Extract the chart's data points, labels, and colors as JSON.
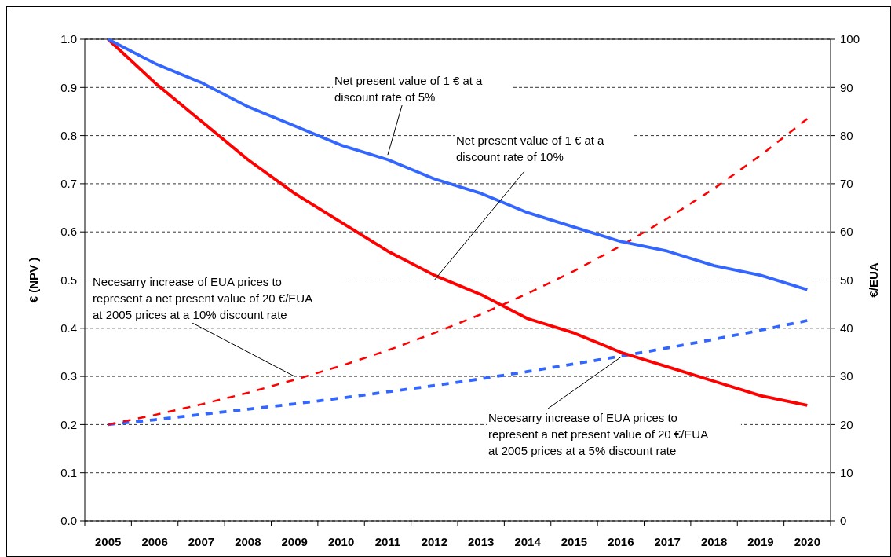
{
  "chart_data": {
    "type": "line",
    "ylabel": "€ (NPV )",
    "y2label": "€/EUA",
    "categories": [
      "2005",
      "2006",
      "2007",
      "2008",
      "2009",
      "2010",
      "2011",
      "2012",
      "2013",
      "2014",
      "2015",
      "2016",
      "2017",
      "2018",
      "2019",
      "2020"
    ],
    "ylim": [
      0,
      1
    ],
    "yticks": [
      {
        "value": 0,
        "label": "0.0"
      },
      0.1,
      0.2,
      0.3,
      0.4,
      0.5,
      0.6,
      0.7,
      0.8,
      0.9,
      {
        "value": 1,
        "label": "1.0"
      }
    ],
    "y2lim": [
      0,
      100
    ],
    "y2ticks": [
      0,
      10,
      20,
      30,
      40,
      50,
      60,
      70,
      80,
      90,
      100
    ],
    "grid": "y",
    "marker": "none",
    "series": [
      {
        "color": "#3366ff",
        "line_style": "solid",
        "values": [
          1,
          0.95,
          0.91,
          0.86,
          0.82,
          0.78,
          0.75,
          0.71,
          0.68,
          0.64,
          0.61,
          0.58,
          0.56,
          0.53,
          0.51,
          0.48
        ]
      },
      {
        "color": "#ff0000",
        "line_style": "solid",
        "values": [
          1,
          0.91,
          0.83,
          0.75,
          0.68,
          0.62,
          0.56,
          0.51,
          0.47,
          0.42,
          0.39,
          0.35,
          0.32,
          0.29,
          0.26,
          0.24
        ]
      },
      {
        "color": "#ff0000",
        "line_style": "dashed",
        "axis": "y2",
        "values": [
          20,
          22,
          24.2,
          26.6,
          29.3,
          32.2,
          35.4,
          39,
          42.9,
          47.2,
          51.9,
          57.1,
          62.8,
          69,
          75.9,
          83.5
        ]
      },
      {
        "color": "#3366ff",
        "line_style": "dashed",
        "axis": "y2",
        "values": [
          20,
          21,
          22.1,
          23.2,
          24.3,
          25.5,
          26.8,
          28.1,
          29.5,
          31,
          32.6,
          34.2,
          35.9,
          37.7,
          39.6,
          41.6
        ]
      }
    ],
    "annotations": [
      {
        "text": "Net present value of 1 € at a\ndiscount rate of 5%",
        "x": "2011",
        "y": 0.76
      },
      {
        "text": "Net present value of 1 € at a\ndiscount rate of 10%",
        "x": "2012",
        "y": 0.5
      },
      {
        "text": "Necesarry increase of EUA prices to\nrepresent a net present value of 20 €/EUA\nat 2005 prices at a 10% discount rate",
        "x": "2009",
        "y": 0.3
      },
      {
        "text": "Necesarry increase of EUA prices to\nrepresent a net present value of 20 €/EUA\nat 2005 prices at a 5% discount rate",
        "x": "2016",
        "y": 0.34
      }
    ]
  }
}
